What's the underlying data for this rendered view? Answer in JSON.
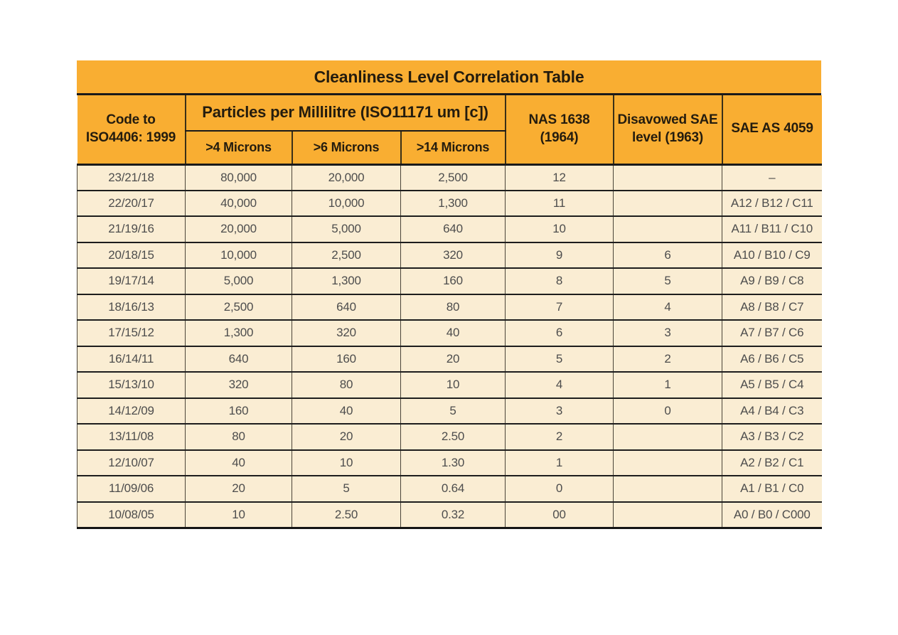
{
  "title": "Cleanliness Level Correlation Table",
  "colors": {
    "header_bg": "#F9AE32",
    "row_bg": "#FAEDD3",
    "grid_line": "#1B1B1B",
    "header_text": "#241C0E",
    "body_text": "#4D4D4D"
  },
  "header": {
    "code_col": "Code to\nISO4406: 1999",
    "particles_group": "Particles per Millilitre (ISO11171 um [c])",
    "sub_columns": [
      ">4 Microns",
      ">6 Microns",
      ">14 Microns"
    ],
    "nas_col": "NAS 1638\n(1964)",
    "disavowed_sae_col": "Disavowed SAE\nlevel (1963)",
    "sae_as_col": "SAE AS 4059"
  },
  "rows": [
    {
      "iso": "23/21/18",
      "m4": "80,000",
      "m6": "20,000",
      "m14": "2,500",
      "nas": "12",
      "sae1963": "",
      "sae4059": "–"
    },
    {
      "iso": "22/20/17",
      "m4": "40,000",
      "m6": "10,000",
      "m14": "1,300",
      "nas": "11",
      "sae1963": "",
      "sae4059": "A12 / B12 / C11"
    },
    {
      "iso": "21/19/16",
      "m4": "20,000",
      "m6": "5,000",
      "m14": "640",
      "nas": "10",
      "sae1963": "",
      "sae4059": "A11 / B11 / C10"
    },
    {
      "iso": "20/18/15",
      "m4": "10,000",
      "m6": "2,500",
      "m14": "320",
      "nas": "9",
      "sae1963": "6",
      "sae4059": "A10 / B10 / C9"
    },
    {
      "iso": "19/17/14",
      "m4": "5,000",
      "m6": "1,300",
      "m14": "160",
      "nas": "8",
      "sae1963": "5",
      "sae4059": "A9 / B9 / C8"
    },
    {
      "iso": "18/16/13",
      "m4": "2,500",
      "m6": "640",
      "m14": "80",
      "nas": "7",
      "sae1963": "4",
      "sae4059": "A8 / B8 / C7"
    },
    {
      "iso": "17/15/12",
      "m4": "1,300",
      "m6": "320",
      "m14": "40",
      "nas": "6",
      "sae1963": "3",
      "sae4059": "A7 / B7 / C6"
    },
    {
      "iso": "16/14/11",
      "m4": "640",
      "m6": "160",
      "m14": "20",
      "nas": "5",
      "sae1963": "2",
      "sae4059": "A6 / B6 / C5"
    },
    {
      "iso": "15/13/10",
      "m4": "320",
      "m6": "80",
      "m14": "10",
      "nas": "4",
      "sae1963": "1",
      "sae4059": "A5 / B5 / C4"
    },
    {
      "iso": "14/12/09",
      "m4": "160",
      "m6": "40",
      "m14": "5",
      "nas": "3",
      "sae1963": "0",
      "sae4059": "A4 / B4 / C3"
    },
    {
      "iso": "13/11/08",
      "m4": "80",
      "m6": "20",
      "m14": "2.50",
      "nas": "2",
      "sae1963": "",
      "sae4059": "A3 / B3 / C2"
    },
    {
      "iso": "12/10/07",
      "m4": "40",
      "m6": "10",
      "m14": "1.30",
      "nas": "1",
      "sae1963": "",
      "sae4059": "A2 / B2 / C1"
    },
    {
      "iso": "11/09/06",
      "m4": "20",
      "m6": "5",
      "m14": "0.64",
      "nas": "0",
      "sae1963": "",
      "sae4059": "A1 / B1 / C0"
    },
    {
      "iso": "10/08/05",
      "m4": "10",
      "m6": "2.50",
      "m14": "0.32",
      "nas": "00",
      "sae1963": "",
      "sae4059": "A0 / B0 / C000"
    }
  ]
}
